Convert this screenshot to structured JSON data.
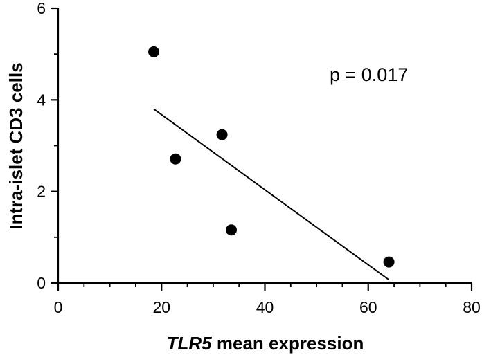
{
  "chart_data": {
    "type": "scatter",
    "title": "",
    "xlabel_italic": "TLR5",
    "xlabel_rest": " mean expression",
    "ylabel": "Intra-islet CD3 cells",
    "xlim": [
      0,
      80
    ],
    "ylim": [
      0,
      6
    ],
    "x_ticks": [
      0,
      20,
      40,
      60,
      80
    ],
    "y_ticks": [
      0,
      2,
      4,
      6
    ],
    "x_minor_step": 5,
    "y_minor_step": 1,
    "grid": false,
    "points": [
      {
        "x": 18.5,
        "y": 5.05
      },
      {
        "x": 22.7,
        "y": 2.71
      },
      {
        "x": 31.7,
        "y": 3.24
      },
      {
        "x": 33.5,
        "y": 1.16
      },
      {
        "x": 64.0,
        "y": 0.46
      }
    ],
    "fit_line": {
      "x": [
        18.5,
        64.0
      ],
      "y": [
        3.8,
        0.07
      ]
    },
    "annotation": "p = 0.017"
  }
}
